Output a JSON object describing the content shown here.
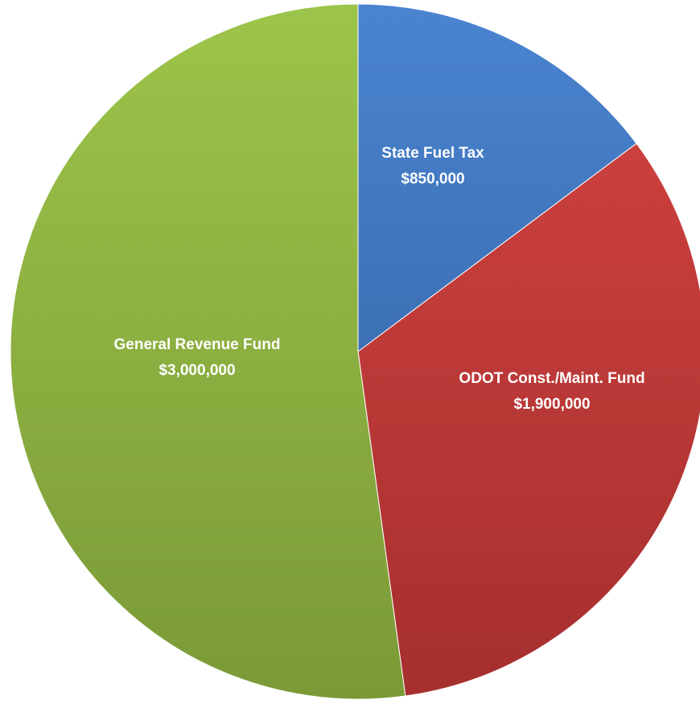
{
  "chart_data": {
    "type": "pie",
    "categories": [
      "State Fuel Tax",
      "ODOT Const./Maint. Fund",
      "General Revenue Fund"
    ],
    "values": [
      850000,
      1900000,
      3000000
    ],
    "value_labels": [
      "$850,000",
      "$1,900,000",
      "$3,000,000"
    ],
    "colors": [
      "#3a6fb8",
      "#bd3936",
      "#8aae3f"
    ],
    "gradient_light": [
      "#4a84d0",
      "#d44442",
      "#9dc44a"
    ],
    "gradient_dark": [
      "#2e5c99",
      "#a52f2e",
      "#7a9a37"
    ],
    "start": "12 o'clock",
    "direction": "clockwise",
    "legend": "none"
  }
}
